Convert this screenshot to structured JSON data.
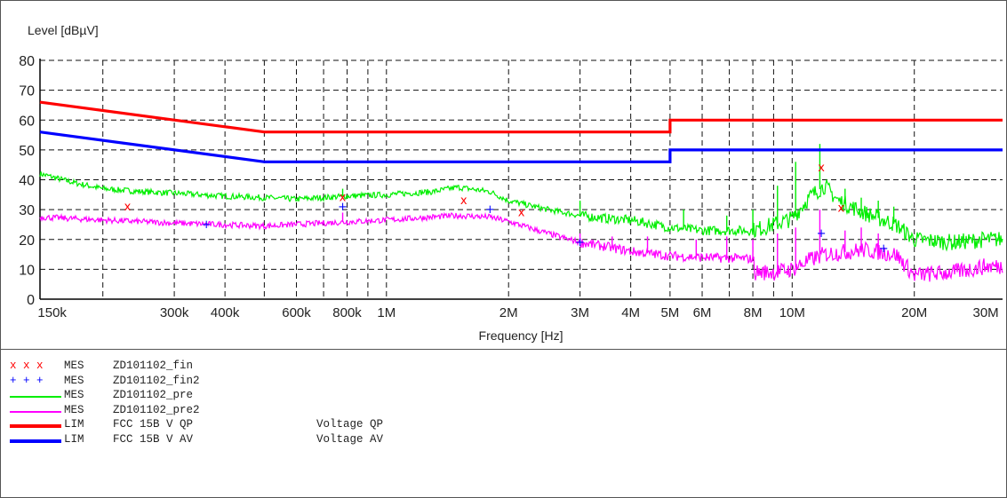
{
  "chart_data": {
    "type": "line",
    "ylabel": "Level [dBµV]",
    "xlabel": "Frequency [Hz]",
    "x_scale": "log",
    "xlim": [
      140000,
      33000000
    ],
    "ylim": [
      0,
      80
    ],
    "grid": true,
    "x_ticks": [
      {
        "value": 150000,
        "label": "150k"
      },
      {
        "value": 300000,
        "label": "300k"
      },
      {
        "value": 400000,
        "label": "400k"
      },
      {
        "value": 600000,
        "label": "600k"
      },
      {
        "value": 800000,
        "label": "800k"
      },
      {
        "value": 1000000,
        "label": "1M"
      },
      {
        "value": 2000000,
        "label": "2M"
      },
      {
        "value": 3000000,
        "label": "3M"
      },
      {
        "value": 4000000,
        "label": "4M"
      },
      {
        "value": 5000000,
        "label": "5M"
      },
      {
        "value": 6000000,
        "label": "6M"
      },
      {
        "value": 8000000,
        "label": "8M"
      },
      {
        "value": 10000000,
        "label": "10M"
      },
      {
        "value": 20000000,
        "label": "20M"
      },
      {
        "value": 30000000,
        "label": "30M"
      }
    ],
    "x_gridlines": [
      200000,
      300000,
      400000,
      500000,
      600000,
      700000,
      800000,
      900000,
      1000000,
      2000000,
      3000000,
      4000000,
      5000000,
      6000000,
      7000000,
      8000000,
      9000000,
      10000000,
      20000000
    ],
    "y_ticks": [
      0,
      10,
      20,
      30,
      40,
      50,
      60,
      70,
      80
    ],
    "limits": [
      {
        "name": "FCC 15B V QP",
        "color": "#ff0000",
        "points": [
          [
            140000,
            66
          ],
          [
            500000,
            56
          ],
          [
            5000000,
            56
          ],
          [
            5000000,
            60
          ],
          [
            33000000,
            60
          ]
        ]
      },
      {
        "name": "FCC 15B V AV",
        "color": "#0000ff",
        "points": [
          [
            140000,
            56
          ],
          [
            500000,
            46
          ],
          [
            5000000,
            46
          ],
          [
            5000000,
            50
          ],
          [
            33000000,
            50
          ]
        ]
      }
    ],
    "traces": [
      {
        "name": "ZD101102_pre",
        "color": "#00ee00",
        "points": [
          [
            140000,
            42
          ],
          [
            170000,
            39
          ],
          [
            200000,
            37
          ],
          [
            250000,
            36
          ],
          [
            300000,
            35.5
          ],
          [
            400000,
            34.5
          ],
          [
            500000,
            34
          ],
          [
            600000,
            33.5
          ],
          [
            800000,
            34.5
          ],
          [
            1000000,
            35
          ],
          [
            1300000,
            36
          ],
          [
            1500000,
            37.5
          ],
          [
            1800000,
            36
          ],
          [
            2000000,
            33
          ],
          [
            2500000,
            30
          ],
          [
            3000000,
            28
          ],
          [
            3500000,
            27
          ],
          [
            4000000,
            26.5
          ],
          [
            5000000,
            24
          ],
          [
            6000000,
            23
          ],
          [
            8000000,
            23
          ],
          [
            9000000,
            25
          ],
          [
            10000000,
            27
          ],
          [
            11000000,
            34
          ],
          [
            12000000,
            38
          ],
          [
            13000000,
            33
          ],
          [
            15000000,
            29
          ],
          [
            18000000,
            25
          ],
          [
            20000000,
            20
          ],
          [
            25000000,
            19
          ],
          [
            30000000,
            20
          ],
          [
            33000000,
            20
          ]
        ],
        "spikes": [
          [
            780000,
            37
          ],
          [
            3000000,
            33
          ],
          [
            5400000,
            30
          ],
          [
            6900000,
            28
          ],
          [
            8000000,
            30
          ],
          [
            9200000,
            38
          ],
          [
            10200000,
            46
          ],
          [
            11700000,
            52
          ],
          [
            13500000,
            37
          ],
          [
            14800000,
            34
          ],
          [
            16300000,
            33
          ],
          [
            17800000,
            31
          ]
        ]
      },
      {
        "name": "ZD101102_pre2",
        "color": "#ff00ff",
        "points": [
          [
            140000,
            27.5
          ],
          [
            200000,
            26.5
          ],
          [
            300000,
            25.5
          ],
          [
            500000,
            24.5
          ],
          [
            700000,
            25.5
          ],
          [
            1000000,
            26.5
          ],
          [
            1300000,
            27.5
          ],
          [
            1500000,
            28
          ],
          [
            1800000,
            27.5
          ],
          [
            2000000,
            26
          ],
          [
            2500000,
            22
          ],
          [
            3000000,
            19
          ],
          [
            3500000,
            17.5
          ],
          [
            4000000,
            16
          ],
          [
            5000000,
            14.5
          ],
          [
            6000000,
            14
          ],
          [
            8000000,
            13.5
          ],
          [
            8100000,
            9
          ],
          [
            9000000,
            9
          ],
          [
            10000000,
            10
          ],
          [
            11000000,
            13
          ],
          [
            12000000,
            15
          ],
          [
            15000000,
            16.5
          ],
          [
            18000000,
            15
          ],
          [
            20000000,
            8
          ],
          [
            25000000,
            9
          ],
          [
            30000000,
            11
          ],
          [
            33000000,
            11
          ]
        ],
        "spikes": [
          [
            780000,
            29
          ],
          [
            3000000,
            22
          ],
          [
            3600000,
            21
          ],
          [
            4400000,
            21
          ],
          [
            5800000,
            20
          ],
          [
            6900000,
            21
          ],
          [
            8000000,
            20
          ],
          [
            9200000,
            22
          ],
          [
            10200000,
            24
          ],
          [
            11700000,
            30
          ],
          [
            13500000,
            23
          ],
          [
            14800000,
            24
          ],
          [
            16300000,
            22
          ]
        ]
      }
    ],
    "markers_x": {
      "name": "ZD101102_fin",
      "color": "#ff0000",
      "points": [
        [
          230000,
          31
        ],
        [
          780000,
          34
        ],
        [
          1550000,
          33
        ],
        [
          2150000,
          29
        ],
        [
          11800000,
          44
        ],
        [
          13200000,
          30.5
        ]
      ]
    },
    "markers_plus": {
      "name": "ZD101102_fin2",
      "color": "#0000ff",
      "points": [
        [
          360000,
          25
        ],
        [
          780000,
          31
        ],
        [
          1800000,
          30
        ],
        [
          3000000,
          19
        ],
        [
          11800000,
          22
        ],
        [
          16800000,
          17
        ]
      ]
    },
    "legend": [
      {
        "symbol": "x",
        "symbol_text": "x x x",
        "color": "#ff0000",
        "type": "MES",
        "name": "ZD101102_fin",
        "desc": ""
      },
      {
        "symbol": "plus",
        "symbol_text": "+ + +",
        "color": "#0000ff",
        "type": "MES",
        "name": "ZD101102_fin2",
        "desc": ""
      },
      {
        "symbol": "line",
        "color": "#00ee00",
        "type": "MES",
        "name": "ZD101102_pre",
        "desc": ""
      },
      {
        "symbol": "line",
        "color": "#ff00ff",
        "type": "MES",
        "name": "ZD101102_pre2",
        "desc": ""
      },
      {
        "symbol": "thick",
        "color": "#ff0000",
        "type": "LIM",
        "name": "FCC 15B V QP",
        "desc": "Voltage QP"
      },
      {
        "symbol": "thick",
        "color": "#0000ff",
        "type": "LIM",
        "name": "FCC 15B V AV",
        "desc": "Voltage AV"
      }
    ]
  }
}
